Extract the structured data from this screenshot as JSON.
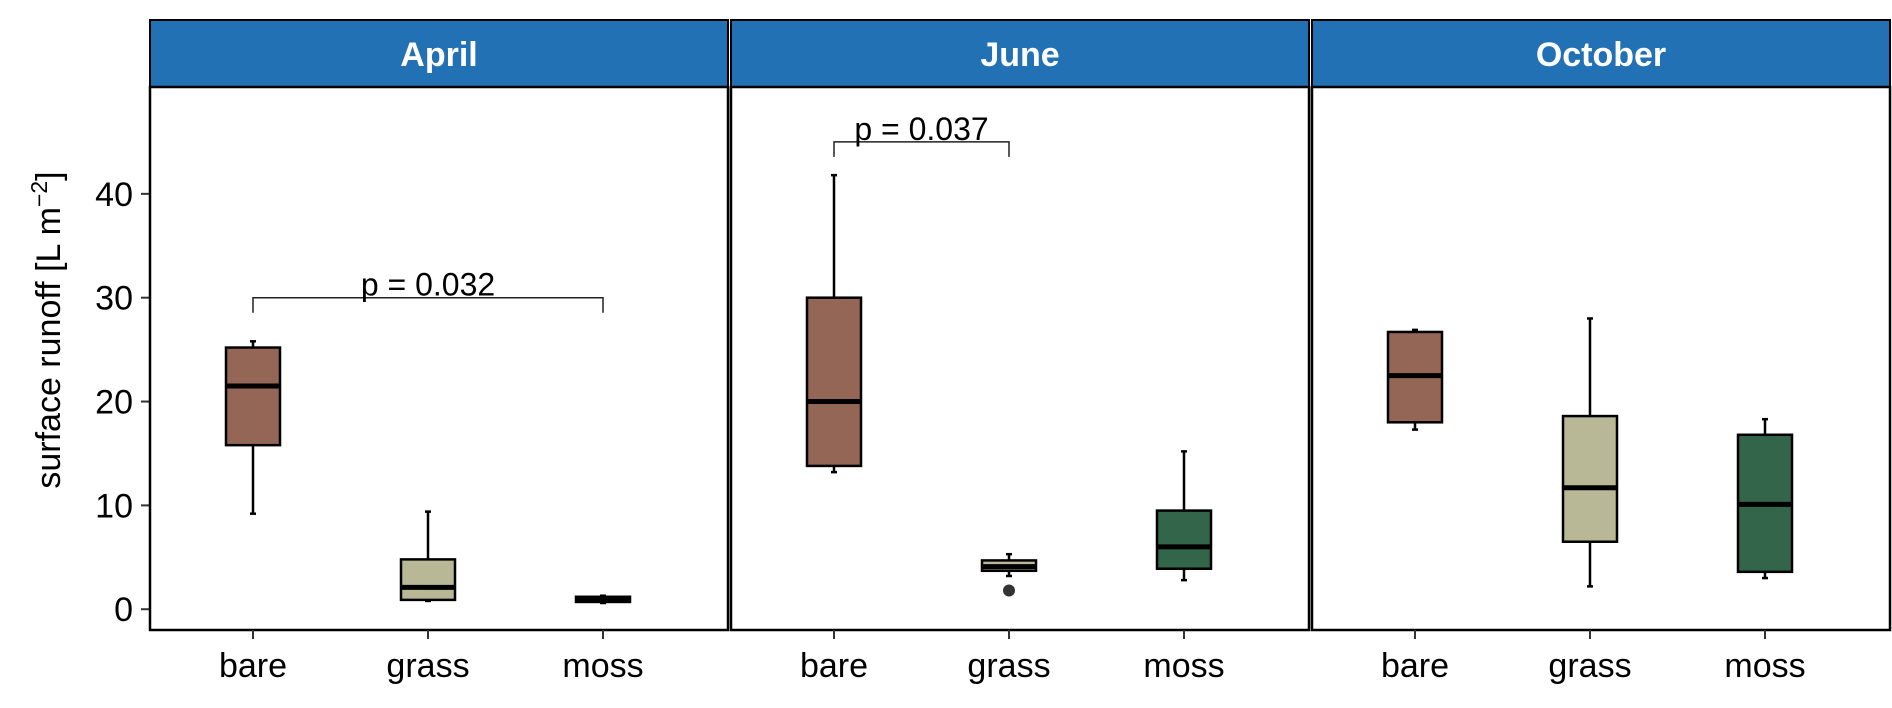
{
  "chart_data": {
    "type": "box",
    "ylabel": "surface runoff [L m",
    "ylabel_sup": "−2",
    "ylabel_close": "]",
    "ylim": [
      -2,
      50
    ],
    "yticks": [
      "0",
      "10",
      "20",
      "30",
      "40"
    ],
    "ytick_values": [
      0,
      10,
      20,
      30,
      40
    ],
    "categories": [
      "bare",
      "grass",
      "moss"
    ],
    "colors": {
      "bare": "#946656",
      "grass": "#b8b896",
      "moss": "#33654a",
      "strip": "#2271b5"
    },
    "panels": [
      {
        "title": "April",
        "boxes": [
          {
            "category": "bare",
            "min": 9.2,
            "q1": 15.8,
            "median": 21.5,
            "q3": 25.2,
            "max": 25.8,
            "outliers": []
          },
          {
            "category": "grass",
            "min": 0.8,
            "q1": 0.9,
            "median": 2.1,
            "q3": 4.8,
            "max": 9.4,
            "outliers": []
          },
          {
            "category": "moss",
            "min": 0.6,
            "q1": 0.7,
            "median": 0.9,
            "q3": 1.2,
            "max": 1.3,
            "outliers": []
          }
        ],
        "annotations": [
          {
            "text": "p = 0.032",
            "from": "bare",
            "to": "moss",
            "y": 30
          }
        ]
      },
      {
        "title": "June",
        "boxes": [
          {
            "category": "bare",
            "min": 13.2,
            "q1": 13.8,
            "median": 20.0,
            "q3": 30.0,
            "max": 41.8,
            "outliers": []
          },
          {
            "category": "grass",
            "min": 3.2,
            "q1": 3.7,
            "median": 4.1,
            "q3": 4.7,
            "max": 5.3,
            "outliers": [
              1.8
            ]
          },
          {
            "category": "moss",
            "min": 2.8,
            "q1": 3.9,
            "median": 6.0,
            "q3": 9.5,
            "max": 15.2,
            "outliers": []
          }
        ],
        "annotations": [
          {
            "text": "p = 0.037",
            "from": "bare",
            "to": "grass",
            "y": 45
          }
        ]
      },
      {
        "title": "October",
        "boxes": [
          {
            "category": "bare",
            "min": 17.3,
            "q1": 18.0,
            "median": 22.5,
            "q3": 26.7,
            "max": 26.9,
            "outliers": []
          },
          {
            "category": "grass",
            "min": 2.2,
            "q1": 6.5,
            "median": 11.7,
            "q3": 18.6,
            "max": 28.0,
            "outliers": []
          },
          {
            "category": "moss",
            "min": 3.0,
            "q1": 3.6,
            "median": 10.1,
            "q3": 16.8,
            "max": 18.3,
            "outliers": []
          }
        ],
        "annotations": []
      }
    ]
  }
}
